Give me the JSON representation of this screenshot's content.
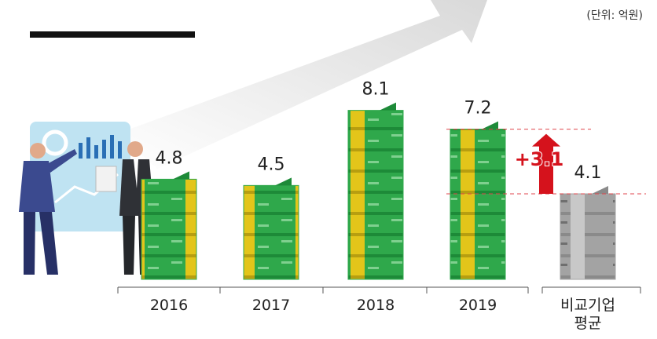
{
  "chart_data": {
    "type": "bar",
    "unit_label": "(단위: 억원)",
    "categories": [
      "2016",
      "2017",
      "2018",
      "2019",
      "비교기업 평균"
    ],
    "values": [
      4.8,
      4.5,
      8.1,
      7.2,
      4.1
    ],
    "colors": [
      "#2fa84b",
      "#2fa84b",
      "#2fa84b",
      "#2fa84b",
      "#a3a3a3"
    ],
    "ylim": [
      0,
      8.5
    ],
    "annotation": "+3.1",
    "annotation_color": "#d5121c"
  }
}
